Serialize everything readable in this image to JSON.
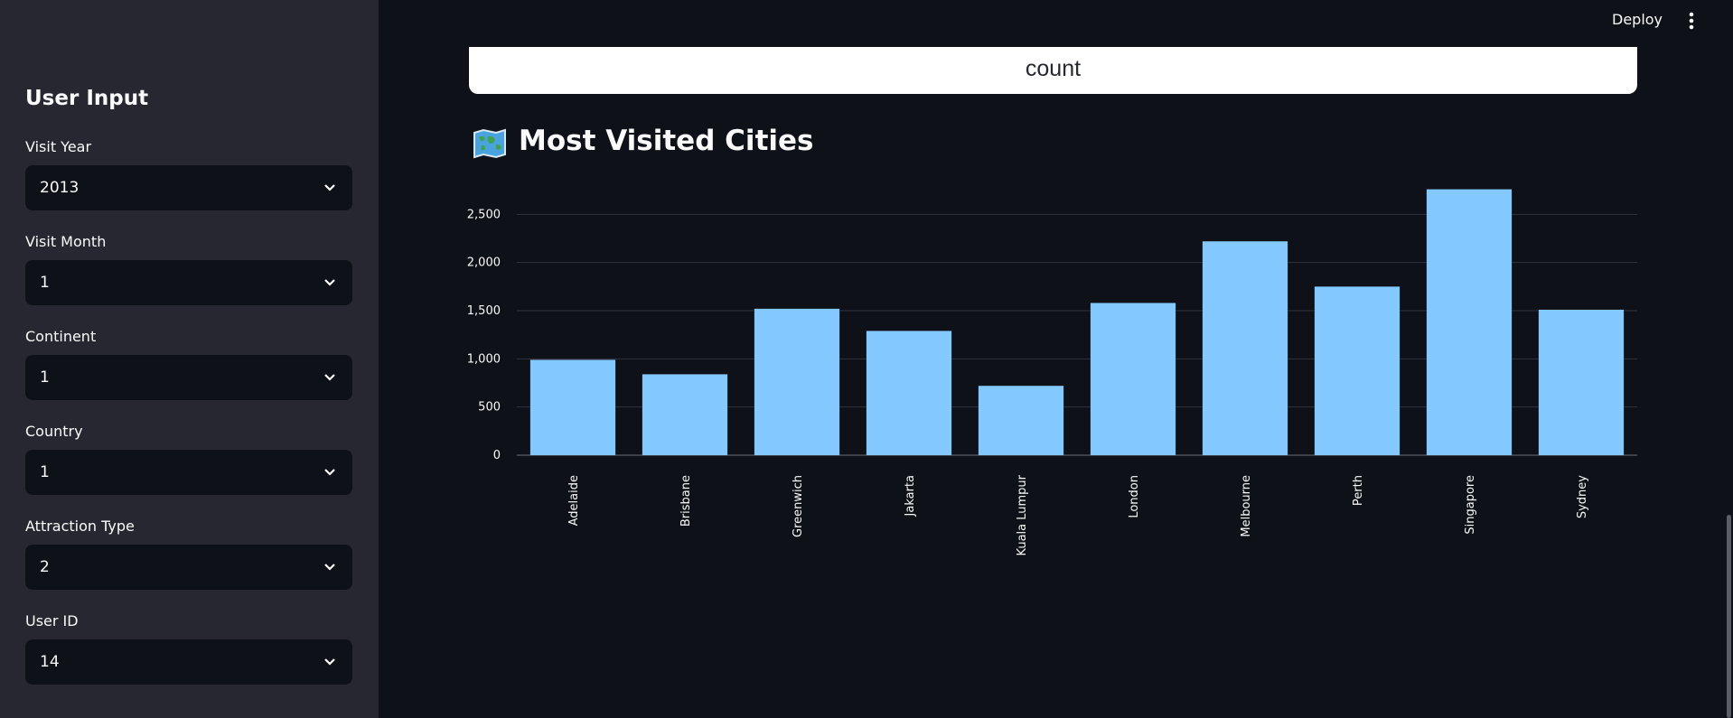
{
  "topbar": {
    "deploy_label": "Deploy",
    "menu_icon": "vertical-ellipsis-icon"
  },
  "sidebar": {
    "title": "User Input",
    "fields": [
      {
        "label": "Visit Year",
        "value": "2013"
      },
      {
        "label": "Visit Month",
        "value": "1"
      },
      {
        "label": "Continent",
        "value": "1"
      },
      {
        "label": "Country",
        "value": "1"
      },
      {
        "label": "Attraction Type",
        "value": "2"
      },
      {
        "label": "User ID",
        "value": "14"
      }
    ]
  },
  "main": {
    "count_card_text": "count",
    "section_title": "Most Visited Cities",
    "section_icon": "world-map-icon"
  },
  "colors": {
    "bar": "#83c9ff",
    "background": "#0e1117",
    "sidebar": "#262730"
  },
  "chart_data": {
    "type": "bar",
    "categories": [
      "Adelaide",
      "Brisbane",
      "Greenwich",
      "Jakarta",
      "Kuala Lumpur",
      "London",
      "Melbourne",
      "Perth",
      "Singapore",
      "Sydney"
    ],
    "values": [
      990,
      840,
      1520,
      1290,
      720,
      1580,
      2220,
      1750,
      2760,
      1510
    ],
    "yticks": [
      0,
      500,
      1000,
      1500,
      2000,
      2500
    ],
    "ytick_labels": [
      "0",
      "500",
      "1,000",
      "1,500",
      "2,000",
      "2,500"
    ],
    "ylim": [
      0,
      2850
    ],
    "grid": true,
    "xlabel": "",
    "ylabel": "",
    "title": ""
  }
}
